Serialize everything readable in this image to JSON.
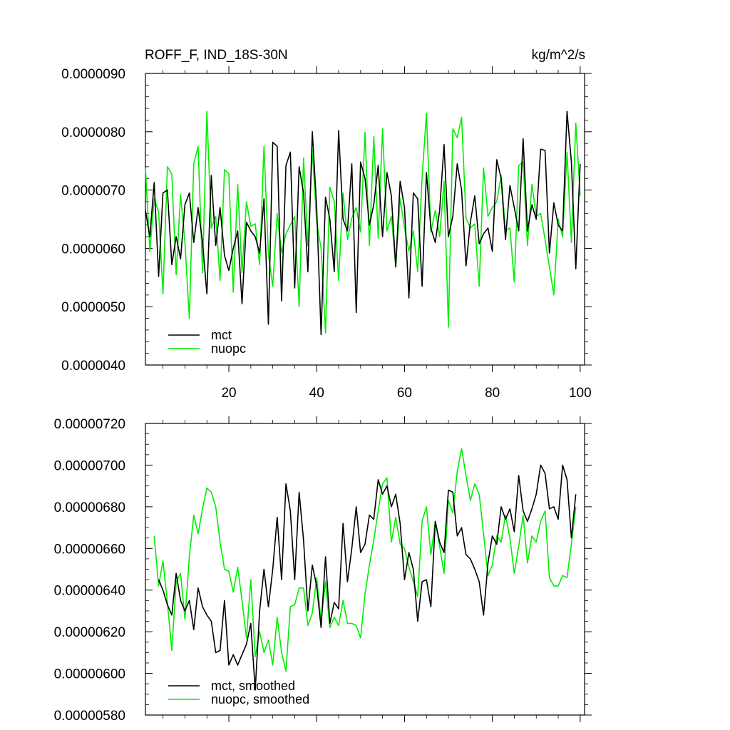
{
  "chart_data": [
    {
      "type": "line",
      "title": "ROFF_F, IND_18S-30N",
      "units": "kg/m^2/s",
      "xlim": [
        1,
        101
      ],
      "ylim": [
        4e-06,
        9e-06
      ],
      "x_ticks": [
        20,
        40,
        60,
        80,
        100
      ],
      "x_tick_labels": [
        "20",
        "40",
        "60",
        "80",
        "100"
      ],
      "y_ticks": [
        4e-06,
        5e-06,
        6e-06,
        7e-06,
        8e-06,
        9e-06
      ],
      "y_tick_labels": [
        "0.0000040",
        "0.0000050",
        "0.0000060",
        "0.0000070",
        "0.0000080",
        "0.0000090"
      ],
      "grid": false,
      "legend_position": "bottom-left",
      "x_start": 1,
      "series": [
        {
          "name": "mct",
          "color": "#000000",
          "values": [
            6.65,
            6.2,
            7.13,
            5.52,
            6.95,
            7.0,
            5.72,
            6.2,
            5.82,
            6.75,
            6.95,
            6.1,
            6.7,
            6.1,
            5.22,
            7.25,
            6.05,
            6.7,
            5.88,
            5.62,
            6.0,
            6.3,
            5.05,
            6.45,
            6.3,
            6.2,
            5.92,
            6.85,
            4.7,
            7.82,
            7.75,
            5.1,
            7.42,
            7.65,
            5.32,
            7.4,
            6.95,
            5.6,
            8.0,
            6.7,
            4.52,
            6.88,
            6.5,
            5.6,
            8.02,
            6.5,
            6.3,
            7.45,
            4.9,
            7.48,
            7.2,
            6.4,
            6.75,
            7.42,
            6.2,
            7.3,
            6.9,
            5.68,
            7.15,
            6.7,
            5.15,
            6.95,
            6.85,
            5.35,
            7.3,
            6.35,
            6.1,
            6.65,
            7.78,
            6.2,
            6.55,
            7.45,
            7.0,
            5.7,
            6.45,
            6.9,
            6.08,
            6.25,
            6.35,
            5.95,
            7.52,
            7.2,
            6.15,
            7.08,
            6.7,
            6.3,
            7.88,
            6.3,
            6.75,
            6.5,
            7.7,
            7.68,
            5.92,
            6.78,
            6.4,
            6.3,
            8.35,
            7.48,
            5.65,
            7.45
          ]
        },
        {
          "name": "nuopc",
          "color": "#00ee00",
          "values": [
            7.38,
            5.95,
            6.85,
            6.62,
            5.22,
            7.4,
            7.28,
            5.55,
            6.92,
            6.1,
            4.8,
            7.45,
            7.75,
            5.58,
            8.35,
            6.35,
            6.55,
            5.45,
            7.35,
            7.28,
            5.25,
            7.1,
            5.58,
            6.8,
            6.38,
            6.42,
            5.72,
            7.75,
            5.9,
            5.35,
            6.6,
            5.92,
            6.25,
            6.4,
            6.55,
            5.0,
            7.55,
            6.05,
            7.68,
            6.45,
            6.0,
            4.55,
            7.05,
            6.8,
            5.45,
            6.95,
            6.15,
            6.52,
            6.7,
            6.28,
            7.99,
            6.05,
            7.92,
            6.18,
            8.05,
            6.3,
            6.55,
            5.7,
            6.85,
            6.35,
            5.95,
            6.3,
            5.6,
            7.22,
            8.32,
            6.28,
            6.65,
            6.2,
            7.15,
            4.65,
            8.05,
            7.9,
            8.25,
            6.52,
            6.35,
            6.42,
            5.35,
            7.38,
            6.55,
            6.7,
            6.8,
            7.25,
            6.3,
            6.35,
            5.42,
            7.42,
            7.48,
            6.05,
            7.1,
            6.55,
            6.6,
            6.15,
            5.68,
            5.2,
            6.5,
            6.2,
            7.65,
            6.1,
            8.15,
            6.9
          ]
        }
      ]
    },
    {
      "type": "line",
      "xlim": [
        1,
        101
      ],
      "ylim": [
        5.8e-06,
        7.2e-06
      ],
      "x_ticks": [
        20,
        40,
        60,
        80,
        100
      ],
      "x_tick_labels": [],
      "y_ticks": [
        5.8e-06,
        6e-06,
        6.2e-06,
        6.4e-06,
        6.6e-06,
        6.8e-06,
        7e-06,
        7.2e-06
      ],
      "y_tick_labels": [
        "0.00000580",
        "0.00000600",
        "0.00000620",
        "0.00000640",
        "0.00000660",
        "0.00000680",
        "0.00000700",
        "0.00000720"
      ],
      "grid": false,
      "legend_position": "bottom-left",
      "series": [
        {
          "name": "mct, smoothed",
          "color": "#000000",
          "x_start": 4,
          "values": [
            6.45,
            6.4,
            6.33,
            6.28,
            6.48,
            6.35,
            6.3,
            6.35,
            6.21,
            6.41,
            6.32,
            6.28,
            6.25,
            6.1,
            6.11,
            6.35,
            6.04,
            6.09,
            6.04,
            6.09,
            6.14,
            6.24,
            5.92,
            6.3,
            6.5,
            6.32,
            6.5,
            6.75,
            6.45,
            6.91,
            6.78,
            6.45,
            6.87,
            6.64,
            6.3,
            6.52,
            6.42,
            6.22,
            6.56,
            6.24,
            6.34,
            6.31,
            6.72,
            6.44,
            6.6,
            6.8,
            6.58,
            6.62,
            6.76,
            6.74,
            6.93,
            6.86,
            6.9,
            6.8,
            6.86,
            6.72,
            6.45,
            6.58,
            6.5,
            6.25,
            6.44,
            6.45,
            6.32,
            6.73,
            6.63,
            6.58,
            6.88,
            6.87,
            6.66,
            6.7,
            6.57,
            6.55,
            6.5,
            6.44,
            6.28,
            6.53,
            6.66,
            6.62,
            6.8,
            6.74,
            6.79,
            6.68,
            6.95,
            6.78,
            6.73,
            6.79,
            6.86,
            7.0,
            6.96,
            6.79,
            6.8,
            6.74,
            7.0,
            6.93,
            6.65,
            6.86
          ]
        },
        {
          "name": "nuopc, smoothed",
          "color": "#00ee00",
          "x_start": 3,
          "values": [
            6.66,
            6.42,
            6.54,
            6.34,
            6.11,
            6.44,
            6.48,
            6.26,
            6.56,
            6.76,
            6.67,
            6.79,
            6.89,
            6.87,
            6.8,
            6.63,
            6.5,
            6.49,
            6.39,
            6.51,
            6.35,
            6.17,
            6.45,
            6.08,
            6.2,
            6.1,
            6.16,
            6.04,
            6.27,
            6.1,
            6.01,
            6.32,
            6.33,
            6.41,
            6.41,
            6.23,
            6.29,
            6.46,
            6.25,
            6.44,
            6.22,
            6.27,
            6.23,
            6.35,
            6.24,
            6.24,
            6.23,
            6.17,
            6.38,
            6.52,
            6.64,
            6.78,
            6.91,
            6.94,
            6.63,
            6.75,
            6.62,
            6.6,
            6.51,
            6.44,
            6.37,
            6.73,
            6.8,
            6.57,
            6.73,
            6.61,
            6.48,
            6.83,
            6.77,
            6.97,
            7.08,
            6.95,
            6.83,
            6.91,
            6.86,
            6.67,
            6.47,
            6.52,
            6.66,
            6.63,
            6.76,
            6.65,
            6.48,
            6.61,
            6.76,
            6.53,
            6.66,
            6.63,
            6.73,
            6.78,
            6.46,
            6.42,
            6.42,
            6.47,
            6.46,
            6.62,
            6.8
          ]
        }
      ]
    }
  ]
}
